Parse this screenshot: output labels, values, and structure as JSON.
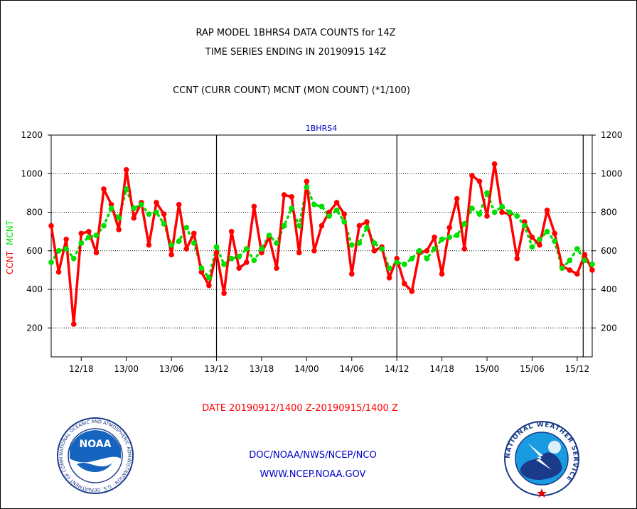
{
  "header": {
    "title_line1": "RAP MODEL 1BHRS4 DATA COUNTS for 14Z",
    "title_line2": "TIME SERIES ENDING IN 20190915 14Z",
    "subtitle": "CCNT (CURR COUNT) MCNT (MON COUNT) (*1/100)"
  },
  "chart_data": {
    "type": "line",
    "title": "1BHRS4",
    "ylabel_left": [
      "CCNT",
      "MCNT"
    ],
    "ylim": [
      50,
      1200
    ],
    "yticks": [
      200,
      400,
      600,
      800,
      1000,
      1200
    ],
    "xlim": [
      0,
      72
    ],
    "xticks": [
      {
        "x": 4,
        "label": "12/18"
      },
      {
        "x": 10,
        "label": "13/00"
      },
      {
        "x": 16,
        "label": "13/06"
      },
      {
        "x": 22,
        "label": "13/12"
      },
      {
        "x": 28,
        "label": "13/18"
      },
      {
        "x": 34,
        "label": "14/00"
      },
      {
        "x": 40,
        "label": "14/06"
      },
      {
        "x": 46,
        "label": "14/12"
      },
      {
        "x": 52,
        "label": "14/18"
      },
      {
        "x": 58,
        "label": "15/00"
      },
      {
        "x": 64,
        "label": "15/06"
      },
      {
        "x": 70,
        "label": "15/12"
      }
    ],
    "day_boundaries": [
      22,
      46,
      70.8
    ],
    "grid": true,
    "series": [
      {
        "name": "CCNT",
        "color": "#ff0000",
        "values": [
          730,
          490,
          660,
          220,
          690,
          700,
          590,
          920,
          840,
          710,
          1020,
          770,
          850,
          630,
          850,
          790,
          580,
          840,
          610,
          690,
          490,
          420,
          590,
          380,
          700,
          510,
          540,
          830,
          590,
          670,
          510,
          890,
          880,
          590,
          960,
          600,
          730,
          800,
          850,
          790,
          480,
          730,
          750,
          600,
          620,
          460,
          560,
          430,
          390,
          590,
          600,
          670,
          480,
          720,
          870,
          610,
          990,
          960,
          780,
          1050,
          800,
          790,
          560,
          750,
          670,
          630,
          810,
          690,
          520,
          500,
          480,
          580,
          500
        ]
      },
      {
        "name": "MCNT",
        "color": "#00e000",
        "values": [
          540,
          600,
          610,
          560,
          640,
          670,
          680,
          730,
          820,
          770,
          920,
          820,
          840,
          790,
          800,
          740,
          630,
          650,
          720,
          640,
          510,
          460,
          620,
          530,
          560,
          570,
          610,
          550,
          610,
          680,
          640,
          730,
          820,
          730,
          930,
          840,
          830,
          780,
          810,
          750,
          630,
          640,
          720,
          640,
          610,
          510,
          540,
          530,
          560,
          600,
          560,
          610,
          660,
          670,
          680,
          740,
          820,
          790,
          900,
          800,
          830,
          800,
          780,
          730,
          620,
          660,
          700,
          650,
          510,
          550,
          610,
          550,
          530
        ]
      }
    ]
  },
  "footer": {
    "date_range": "DATE 20190912/1400 Z-20190915/1400 Z",
    "org_line": "DOC/NOAA/NWS/NCEP/NCO",
    "url_line": "WWW.NCEP.NOAA.GOV",
    "noaa_logo": {
      "text": "NOAA",
      "ring_text": "NATIONAL OCEANIC AND ATMOSPHERIC ADMINISTRATION · U.S. DEPARTMENT OF COMMERCE"
    },
    "nws_logo": {
      "ring_text": "NATIONAL WEATHER SERVICE"
    }
  },
  "colors": {
    "ccnt": "#ff0000",
    "mcnt": "#00e000",
    "series_label": "#0000cc",
    "footer_link": "#0000cc",
    "date_text": "#ff0000",
    "axis": "#000000"
  }
}
